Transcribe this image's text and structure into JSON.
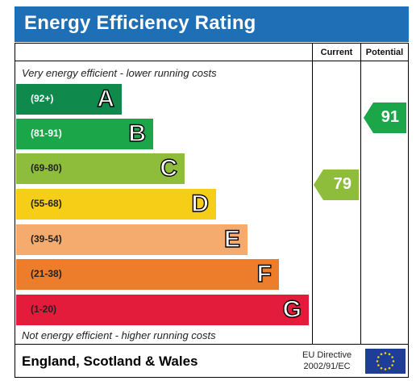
{
  "title": "Energy Efficiency Rating",
  "columns": {
    "current": "Current",
    "potential": "Potential"
  },
  "captions": {
    "top": "Very energy efficient - lower running costs",
    "bottom": "Not energy efficient - higher running costs"
  },
  "bands": [
    {
      "letter": "A",
      "range": "(92+)",
      "color": "#108a4c",
      "text_color": "#ffffff"
    },
    {
      "letter": "B",
      "range": "(81-91)",
      "color": "#1ca64a",
      "text_color": "#ffffff"
    },
    {
      "letter": "C",
      "range": "(69-80)",
      "color": "#8dbd3b",
      "text_color": "#222222"
    },
    {
      "letter": "D",
      "range": "(55-68)",
      "color": "#f7ce17",
      "text_color": "#222222"
    },
    {
      "letter": "E",
      "range": "(39-54)",
      "color": "#f4ab6d",
      "text_color": "#222222"
    },
    {
      "letter": "F",
      "range": "(21-38)",
      "color": "#ee7d2b",
      "text_color": "#222222"
    },
    {
      "letter": "G",
      "range": "(1-20)",
      "color": "#e21c3a",
      "text_color": "#222222"
    }
  ],
  "ratings": {
    "current": {
      "value": "79",
      "color": "#8dbd3b"
    },
    "potential": {
      "value": "91",
      "color": "#1ca64a"
    }
  },
  "footer": {
    "region": "England, Scotland & Wales",
    "directive_line1": "EU Directive",
    "directive_line2": "2002/91/EC"
  },
  "colors": {
    "title_bar": "#1f6fb6",
    "eu_flag": "#1e3d96",
    "eu_star": "#f6d200"
  }
}
